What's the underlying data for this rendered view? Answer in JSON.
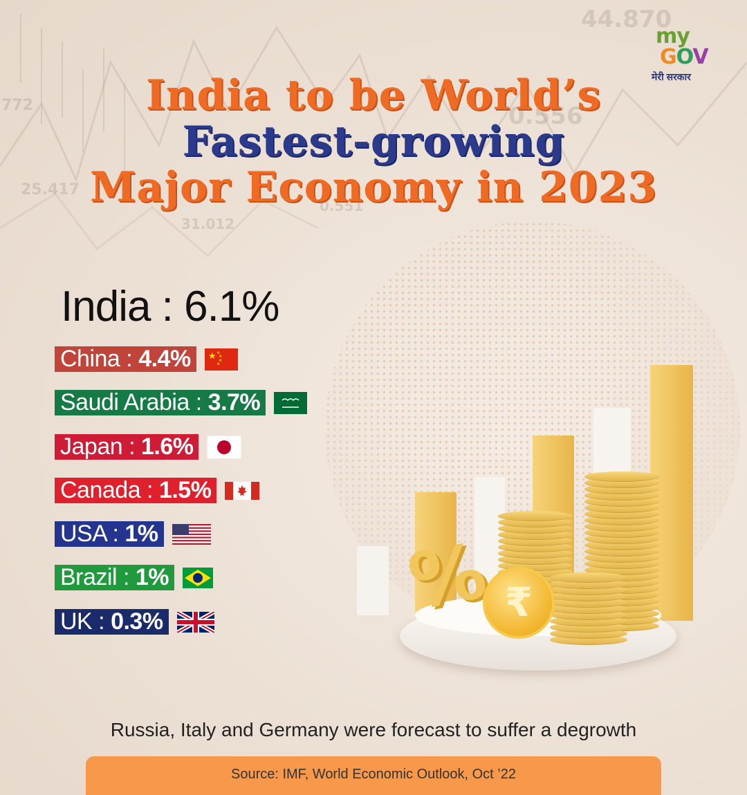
{
  "logo": {
    "my": "my",
    "gov": "GOV",
    "tagline": "मेरी सरकार"
  },
  "title": {
    "line1": "India to be World’s",
    "line2": "Fastest-growing",
    "line3": "Major Economy in 2023"
  },
  "background_numbers": [
    "44.870",
    "0.556",
    "772",
    "25.417",
    "31.012",
    "0.551"
  ],
  "india": {
    "label": "India : 6.1%"
  },
  "countries": [
    {
      "name": "China",
      "value": "4.4%",
      "color": "#c1443a",
      "flag": "china-flag-icon"
    },
    {
      "name": "Saudi Arabia",
      "value": "3.7%",
      "color": "#157a45",
      "flag": "saudi-arabia-flag-icon"
    },
    {
      "name": "Japan",
      "value": "1.6%",
      "color": "#cf1b36",
      "flag": "japan-flag-icon"
    },
    {
      "name": "Canada",
      "value": "1.5%",
      "color": "#e0202d",
      "flag": "canada-flag-icon"
    },
    {
      "name": "USA",
      "value": "1%",
      "color": "#23358f",
      "flag": "usa-flag-icon"
    },
    {
      "name": "Brazil",
      "value": "1%",
      "color": "#1f9a3c",
      "flag": "brazil-flag-icon"
    },
    {
      "name": "UK",
      "value": "0.3%",
      "color": "#1a2b6b",
      "flag": "uk-flag-icon"
    }
  ],
  "note": "Russia, Italy and Germany were forecast to suffer a degrowth",
  "source": "Source: IMF, World Economic Outlook, Oct ’22",
  "colors": {
    "orange": "#ef6a22",
    "navy": "#2b3a8c",
    "source_bg": "#f7984a"
  }
}
